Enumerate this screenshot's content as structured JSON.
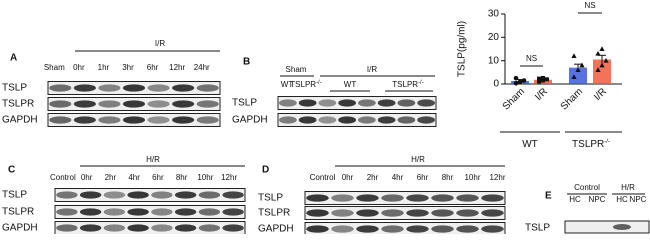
{
  "panel_a": {
    "label": "A",
    "group": "I/R",
    "lanes": [
      "Sham",
      "0hr",
      "1hr",
      "3hr",
      "6hr",
      "12hr",
      "24hr"
    ],
    "rows": [
      "TSLP",
      "TSLPR",
      "GAPDH"
    ]
  },
  "panel_b": {
    "label": "B",
    "sham": "Sham",
    "group": "I/R",
    "sham_lanes": [
      {
        "name": "WT"
      },
      {
        "name": "TSLPR",
        "sup": "-/-"
      }
    ],
    "lanes": [
      {
        "name": "WT"
      },
      {
        "name": "TSLPR",
        "sup": "-/-"
      }
    ],
    "rows": [
      "TSLP",
      "GAPDH"
    ]
  },
  "chart_data": {
    "type": "bar",
    "y_label": "TSLP(pg/ml)",
    "categories": [
      "Sham",
      "I/R",
      "Sham",
      "I/R"
    ],
    "groups": [
      {
        "name": "WT"
      },
      {
        "name": "TSLPR",
        "sup": "-/-"
      }
    ],
    "values": [
      1.3,
      1.8,
      7,
      10.5
    ],
    "errors": [
      0.6,
      0.4,
      1.5,
      1.8
    ],
    "colors": [
      "#3b5bdb",
      "#ef5a3c",
      "#3b5bdb",
      "#ef5a3c"
    ],
    "points": [
      [
        0.3,
        0.8,
        1.5,
        2.5,
        0.9
      ],
      [
        1,
        1.5,
        2,
        2.3,
        2.6
      ],
      [
        3,
        6,
        8,
        12
      ],
      [
        6,
        8,
        10,
        13,
        15
      ]
    ],
    "annotations": [
      "NS",
      "NS"
    ],
    "ylim": [
      0,
      30
    ],
    "yticks": [
      0,
      10,
      20,
      30
    ]
  },
  "panel_c": {
    "label": "C",
    "group": "H/R",
    "lanes": [
      "Control",
      "0hr",
      "2hr",
      "4hr",
      "6hr",
      "8hr",
      "10hr",
      "12hr"
    ],
    "rows": [
      "TSLP",
      "TSLPR",
      "GAPDH"
    ]
  },
  "panel_d": {
    "label": "D",
    "group": "H/R",
    "lanes": [
      "Control",
      "0hr",
      "2hr",
      "4hr",
      "6hr",
      "8hr",
      "10hr",
      "12hr"
    ],
    "rows": [
      "TSLP",
      "TSLPR",
      "GAPDH"
    ]
  },
  "panel_e": {
    "label": "E",
    "groups": [
      "Control",
      "H/R"
    ],
    "lanes": [
      "HC",
      "NPC",
      "HC",
      "NPC"
    ],
    "rows": [
      "TSLP"
    ]
  }
}
